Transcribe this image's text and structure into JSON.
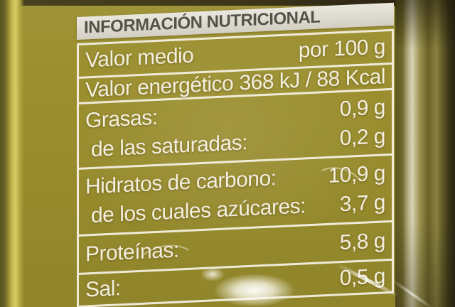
{
  "label": {
    "title": "INFORMACIÓN NUTRICIONAL",
    "header": {
      "label": "Valor medio",
      "value": "por 100 g"
    },
    "energy": {
      "label": "Valor energético",
      "value": "368 kJ / 88 Kcal"
    },
    "rows": [
      {
        "label": "Grasas:",
        "value": "0,9 g"
      },
      {
        "label": "de las saturadas:",
        "value": "0,2 g"
      },
      {
        "label": "Hidratos de carbono:",
        "value": "10,9 g"
      },
      {
        "label": "de los cuales azúcares:",
        "value": "3,7 g"
      },
      {
        "label": "Proteínas:",
        "value": "5,8 g"
      },
      {
        "label": "Sal:",
        "value": "0,5 g"
      }
    ],
    "colors": {
      "label_text": "#f3eedd",
      "label_border": "#f7f3e7",
      "title_background": "#ddd9cd",
      "title_text": "#55524a",
      "pea_base": "#b3a744",
      "pea_highlight": "#e0d57e",
      "jar_shadow": "#3a3418"
    }
  }
}
